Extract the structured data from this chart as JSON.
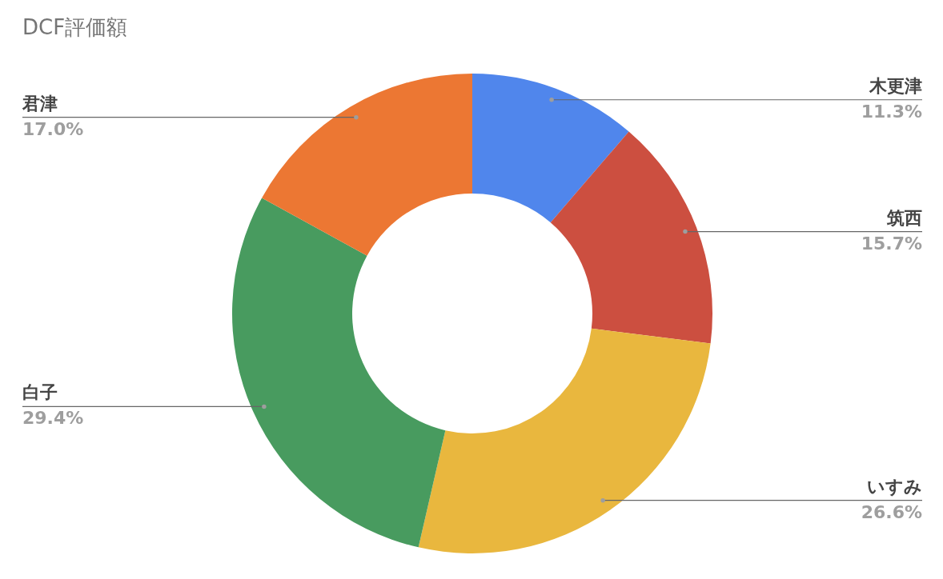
{
  "chart_data": {
    "type": "donut",
    "title": "DCF評価額",
    "categories": [
      "木更津",
      "筑西",
      "いすみ",
      "白子",
      "君津"
    ],
    "values": [
      11.3,
      15.7,
      26.6,
      29.4,
      17.0
    ],
    "colors": [
      "#5086ec",
      "#cc4f40",
      "#e9b73e",
      "#489b5f",
      "#ec7733"
    ],
    "value_labels": [
      "11.3%",
      "15.7%",
      "26.6%",
      "29.4%",
      "17.0%"
    ]
  }
}
